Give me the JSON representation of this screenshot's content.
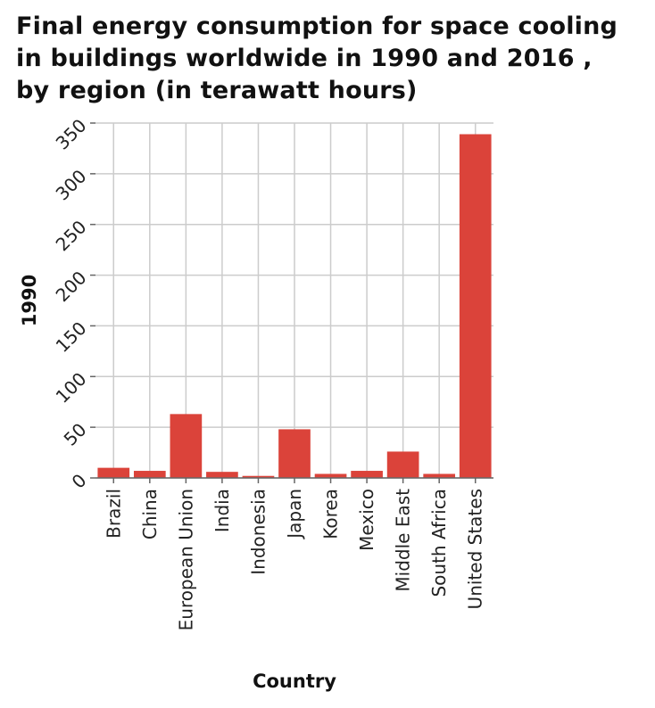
{
  "title_lines": [
    "Final energy consumption for space cooling",
    "in buildings worldwide in 1990 and 2016 ,",
    "by region (in terawatt hours)"
  ],
  "colors": {
    "bar": "#db433a",
    "grid": "#cccccc",
    "axis": "#666666",
    "text": "#222222"
  },
  "chart_data": {
    "type": "bar",
    "title": "Final energy consumption for space cooling in buildings worldwide in 1990 and 2016 , by region (in terawatt hours)",
    "xlabel": "Country",
    "ylabel": "1990",
    "categories": [
      "Brazil",
      "China",
      "European Union",
      "India",
      "Indonesia",
      "Japan",
      "Korea",
      "Mexico",
      "Middle East",
      "South Africa",
      "United States"
    ],
    "values": [
      10,
      7,
      63,
      6,
      2,
      48,
      4,
      7,
      26,
      4,
      339
    ],
    "ylim": [
      0,
      350
    ],
    "yticks": [
      "0",
      "50",
      "100",
      "150",
      "200",
      "250",
      "300",
      "350"
    ],
    "grid": true,
    "legend": "none"
  }
}
